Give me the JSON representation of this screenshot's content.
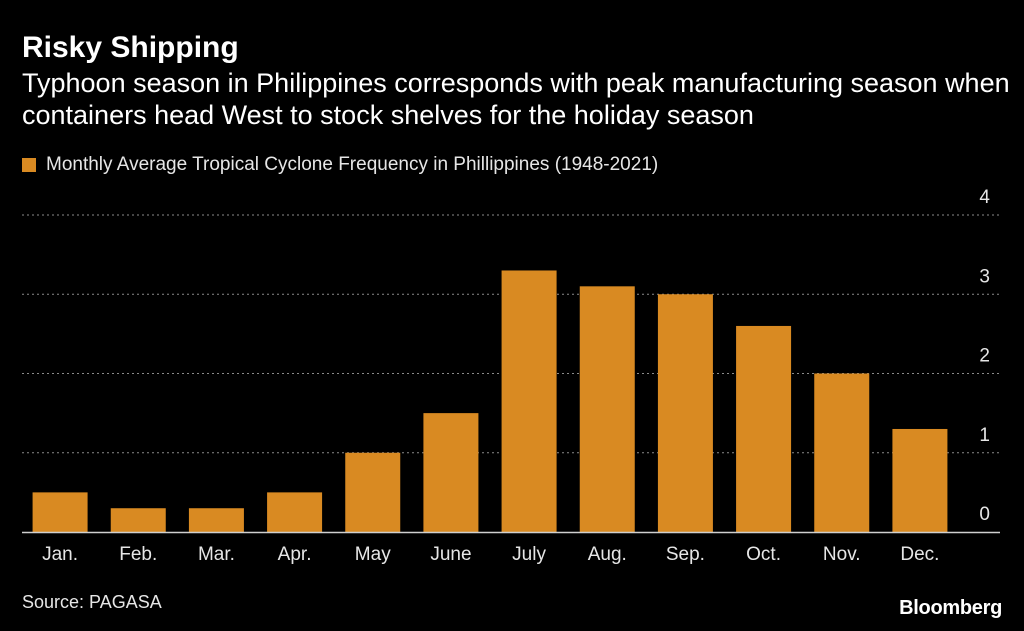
{
  "header": {
    "title": "Risky Shipping",
    "subtitle": "Typhoon season in Philippines corresponds with peak manufacturing season when containers head West to stock shelves for the holiday season"
  },
  "legend": {
    "label": "Monthly Average Tropical Cyclone Frequency in Phillippines (1948-2021)"
  },
  "footer": {
    "source": "Source: PAGASA",
    "brand": "Bloomberg"
  },
  "colors": {
    "bar": "#d98a22",
    "background": "#000000",
    "grid": "#8a8a8a"
  },
  "chart_data": {
    "type": "bar",
    "title": "Risky Shipping",
    "xlabel": "",
    "ylabel": "",
    "ylim": [
      0,
      4
    ],
    "yticks": [
      0,
      1,
      2,
      3,
      4
    ],
    "grid": true,
    "legend_position": "top-left",
    "categories": [
      "Jan.",
      "Feb.",
      "Mar.",
      "Apr.",
      "May",
      "June",
      "July",
      "Aug.",
      "Sep.",
      "Oct.",
      "Nov.",
      "Dec."
    ],
    "series": [
      {
        "name": "Monthly Average Tropical Cyclone Frequency in Phillippines (1948-2021)",
        "values": [
          0.5,
          0.3,
          0.3,
          0.5,
          1.0,
          1.5,
          3.3,
          3.1,
          3.0,
          2.6,
          2.0,
          1.3
        ]
      }
    ]
  }
}
